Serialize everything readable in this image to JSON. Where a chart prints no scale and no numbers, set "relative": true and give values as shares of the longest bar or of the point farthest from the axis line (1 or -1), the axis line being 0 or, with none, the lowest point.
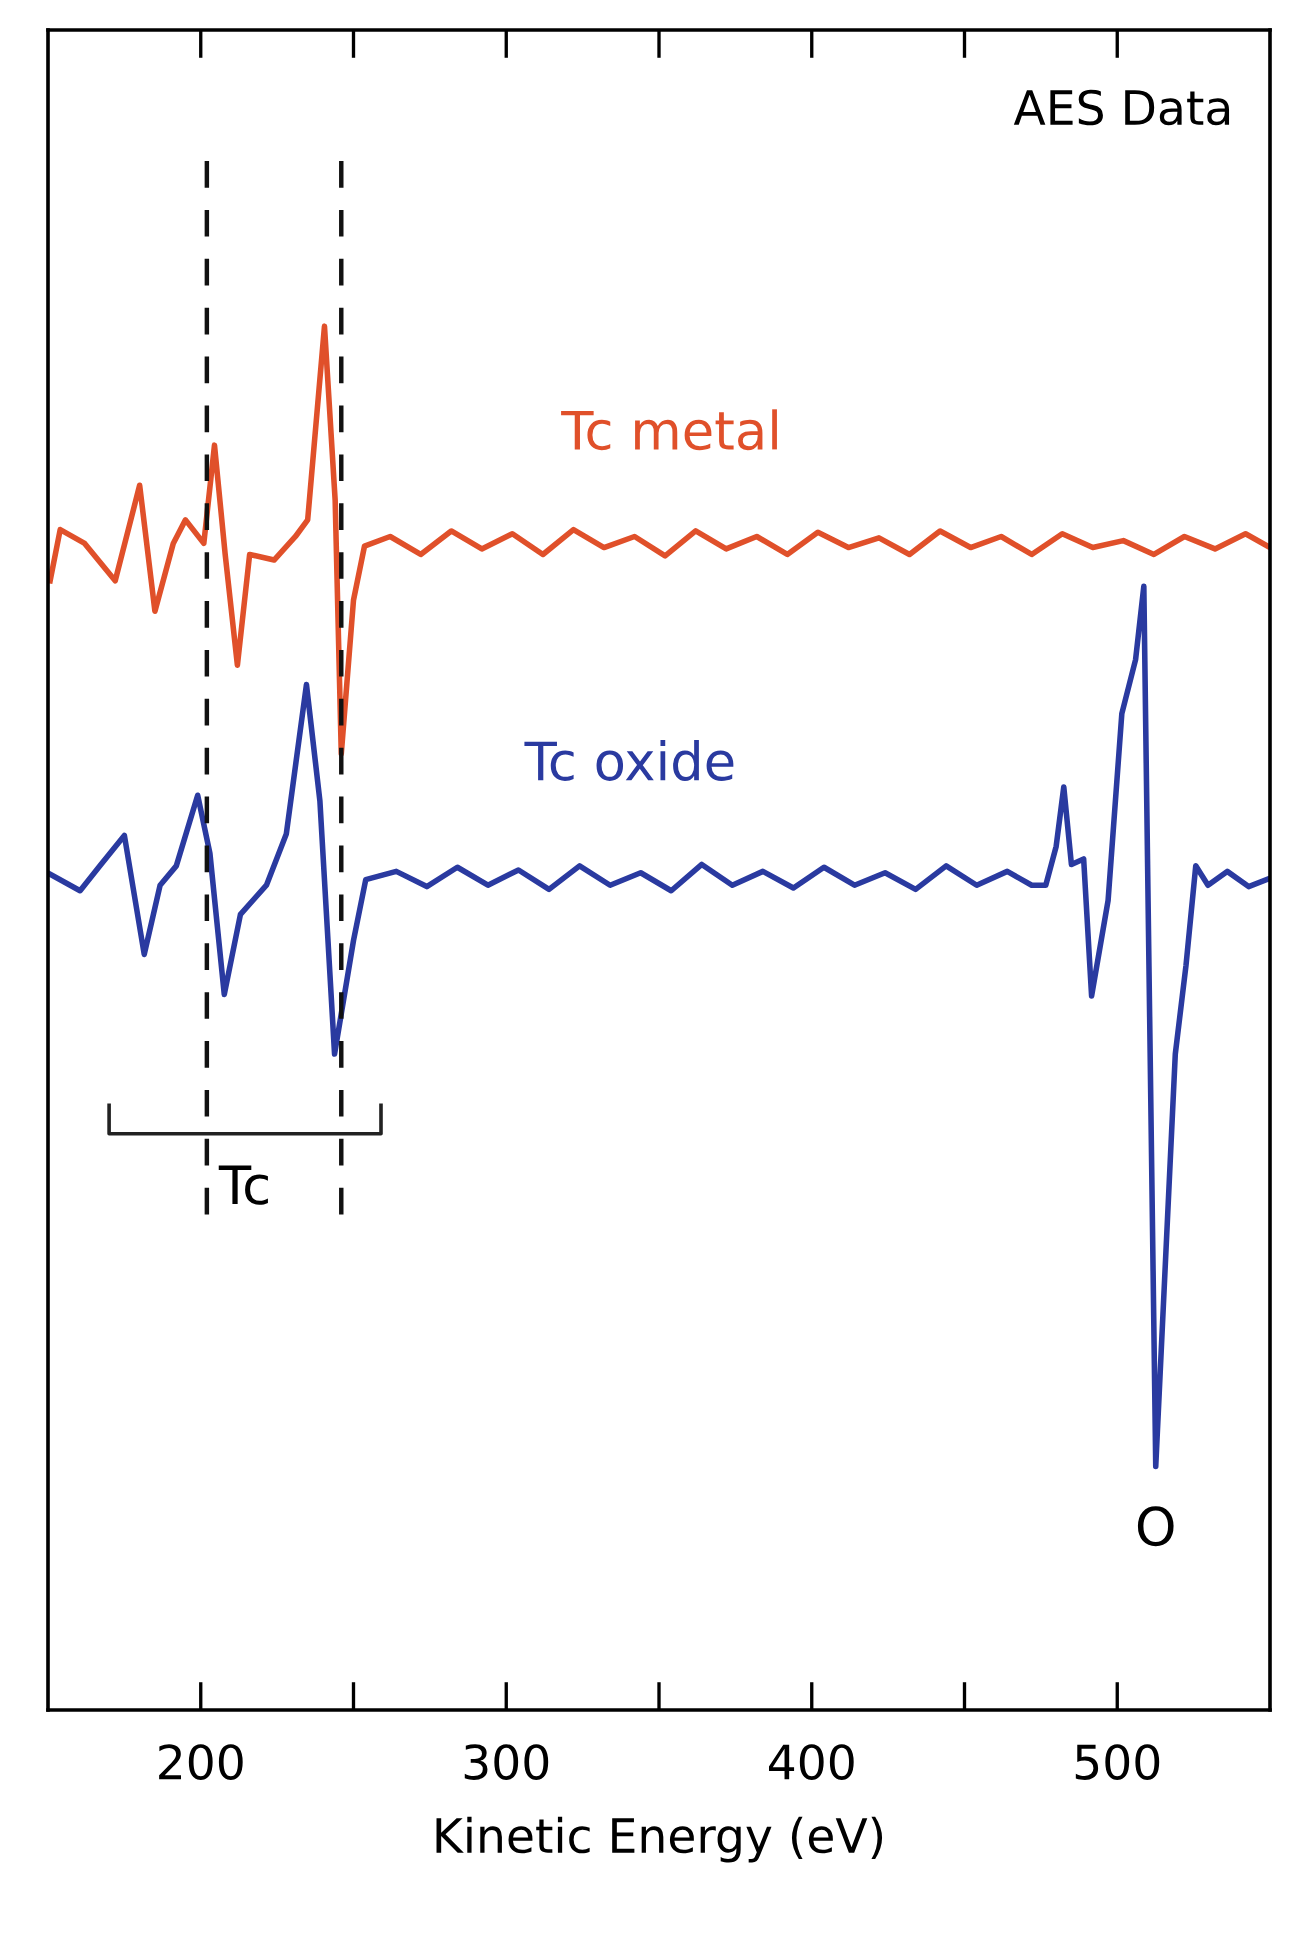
{
  "chart_data": {
    "type": "line",
    "relative": true,
    "xlabel": "Kinetic Energy (eV)",
    "xlim": [
      150,
      550
    ],
    "xticks": [
      200,
      {
        "value": 250,
        "label": null
      },
      300,
      {
        "value": 350,
        "label": null
      },
      400,
      {
        "value": 450,
        "label": null
      },
      500
    ],
    "tick_labels": "x",
    "marker": "none",
    "line_style": "solid",
    "series": [
      {
        "name": "Tc metal",
        "color": "#e0502a",
        "x": [
          150.7,
          154,
          162,
          172,
          180,
          185,
          191,
          195,
          201,
          204.5,
          208,
          212,
          216,
          224,
          231,
          235,
          240.5,
          244,
          246,
          250,
          253.6,
          262,
          272,
          282,
          292,
          302,
          312,
          322,
          332,
          342,
          352,
          362,
          372,
          382,
          392,
          402,
          412,
          422,
          432,
          442,
          452,
          462,
          472,
          482,
          492,
          502,
          512,
          522,
          532,
          542,
          550
        ],
        "values": [
          0.816,
          0.853,
          0.843,
          0.816,
          0.885,
          0.794,
          0.843,
          0.86,
          0.843,
          0.914,
          0.835,
          0.755,
          0.835,
          0.831,
          0.848,
          0.86,
          1.0,
          0.874,
          0.691,
          0.802,
          0.841,
          0.848,
          0.835,
          0.852,
          0.839,
          0.85,
          0.835,
          0.853,
          0.84,
          0.848,
          0.834,
          0.852,
          0.839,
          0.848,
          0.835,
          0.851,
          0.84,
          0.847,
          0.835,
          0.852,
          0.84,
          0.848,
          0.835,
          0.85,
          0.84,
          0.845,
          0.835,
          0.848,
          0.839,
          0.85,
          0.84
        ]
      },
      {
        "name": "Tc oxide",
        "color": "#2a3aa0",
        "x": [
          150.7,
          160.5,
          167,
          175,
          181.5,
          186.7,
          192,
          199,
          203,
          207.7,
          213,
          221.5,
          228,
          234.6,
          239,
          243.8,
          250,
          254,
          264,
          274,
          284,
          294,
          304,
          314,
          324,
          334,
          344,
          354,
          364,
          374,
          384,
          394,
          404,
          414,
          424,
          434,
          444,
          454,
          464,
          472,
          476.6,
          480,
          482.5,
          485,
          489,
          491.6,
          497,
          501.5,
          506,
          508.7,
          512.6,
          519,
          522.5,
          525.7,
          529.7,
          536,
          543,
          550
        ],
        "values": [
          0.604,
          0.592,
          0.61,
          0.632,
          0.546,
          0.596,
          0.61,
          0.661,
          0.619,
          0.517,
          0.575,
          0.596,
          0.633,
          0.741,
          0.657,
          0.474,
          0.556,
          0.6,
          0.606,
          0.595,
          0.609,
          0.596,
          0.607,
          0.593,
          0.61,
          0.596,
          0.605,
          0.592,
          0.611,
          0.596,
          0.606,
          0.594,
          0.609,
          0.596,
          0.605,
          0.593,
          0.61,
          0.596,
          0.606,
          0.596,
          0.596,
          0.624,
          0.667,
          0.611,
          0.615,
          0.516,
          0.585,
          0.72,
          0.759,
          0.812,
          0.176,
          0.474,
          0.538,
          0.61,
          0.596,
          0.606,
          0.595,
          0.601
        ]
      }
    ],
    "ref_lines": [
      {
        "axis": "x",
        "value": 202,
        "label": null,
        "color": "#111111",
        "line_style": "dashed"
      },
      {
        "axis": "x",
        "value": 246,
        "label": null,
        "color": "#111111",
        "line_style": "dashed"
      }
    ],
    "annotations": [
      "AES Data",
      "Tc",
      {
        "text": "O",
        "x": 512.6,
        "y": 0.176
      }
    ]
  }
}
